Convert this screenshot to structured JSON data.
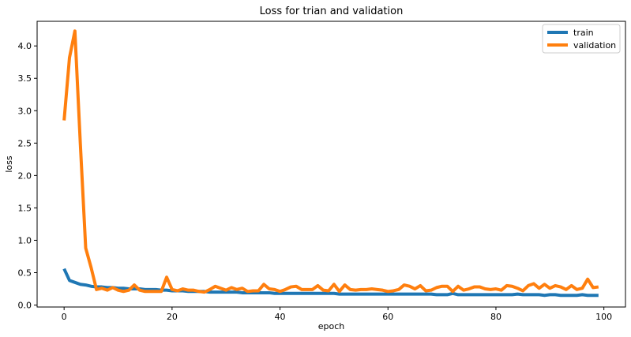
{
  "chart_data": {
    "type": "line",
    "title": "Loss for trian and validation",
    "xlabel": "epoch",
    "ylabel": "loss",
    "xlim": [
      -5,
      104
    ],
    "ylim": [
      -0.03,
      4.38
    ],
    "xticks": [
      0,
      20,
      40,
      60,
      80,
      100
    ],
    "yticks": [
      0.0,
      0.5,
      1.0,
      1.5,
      2.0,
      2.5,
      3.0,
      3.5,
      4.0
    ],
    "grid": false,
    "legend_position": "top-right",
    "series": [
      {
        "name": "train",
        "color": "#1f77b4",
        "x": [
          0,
          1,
          2,
          3,
          4,
          5,
          6,
          7,
          8,
          9,
          10,
          11,
          12,
          13,
          14,
          15,
          16,
          17,
          18,
          19,
          20,
          21,
          22,
          23,
          24,
          25,
          26,
          27,
          28,
          29,
          30,
          31,
          32,
          33,
          34,
          35,
          36,
          37,
          38,
          39,
          40,
          41,
          42,
          43,
          44,
          45,
          46,
          47,
          48,
          49,
          50,
          51,
          52,
          53,
          54,
          55,
          56,
          57,
          58,
          59,
          60,
          61,
          62,
          63,
          64,
          65,
          66,
          67,
          68,
          69,
          70,
          71,
          72,
          73,
          74,
          75,
          76,
          77,
          78,
          79,
          80,
          81,
          82,
          83,
          84,
          85,
          86,
          87,
          88,
          89,
          90,
          91,
          92,
          93,
          94,
          95,
          96,
          97,
          98,
          99
        ],
        "values": [
          0.56,
          0.38,
          0.35,
          0.32,
          0.31,
          0.29,
          0.28,
          0.28,
          0.27,
          0.27,
          0.26,
          0.26,
          0.25,
          0.25,
          0.25,
          0.24,
          0.24,
          0.24,
          0.23,
          0.23,
          0.22,
          0.22,
          0.22,
          0.21,
          0.21,
          0.21,
          0.21,
          0.2,
          0.2,
          0.2,
          0.2,
          0.2,
          0.2,
          0.19,
          0.19,
          0.19,
          0.19,
          0.19,
          0.19,
          0.18,
          0.18,
          0.18,
          0.18,
          0.18,
          0.18,
          0.18,
          0.18,
          0.18,
          0.18,
          0.18,
          0.18,
          0.17,
          0.17,
          0.17,
          0.17,
          0.17,
          0.17,
          0.17,
          0.17,
          0.17,
          0.17,
          0.17,
          0.17,
          0.17,
          0.17,
          0.17,
          0.17,
          0.17,
          0.17,
          0.16,
          0.16,
          0.16,
          0.18,
          0.16,
          0.16,
          0.16,
          0.16,
          0.16,
          0.16,
          0.16,
          0.16,
          0.16,
          0.16,
          0.16,
          0.17,
          0.16,
          0.16,
          0.16,
          0.16,
          0.15,
          0.16,
          0.16,
          0.15,
          0.15,
          0.15,
          0.15,
          0.16,
          0.15,
          0.15,
          0.15
        ]
      },
      {
        "name": "validation",
        "color": "#ff7f0e",
        "x": [
          0,
          1,
          2,
          3,
          4,
          5,
          6,
          7,
          8,
          9,
          10,
          11,
          12,
          13,
          14,
          15,
          16,
          17,
          18,
          19,
          20,
          21,
          22,
          23,
          24,
          25,
          26,
          27,
          28,
          29,
          30,
          31,
          32,
          33,
          34,
          35,
          36,
          37,
          38,
          39,
          40,
          41,
          42,
          43,
          44,
          45,
          46,
          47,
          48,
          49,
          50,
          51,
          52,
          53,
          54,
          55,
          56,
          57,
          58,
          59,
          60,
          61,
          62,
          63,
          64,
          65,
          66,
          67,
          68,
          69,
          70,
          71,
          72,
          73,
          74,
          75,
          76,
          77,
          78,
          79,
          80,
          81,
          82,
          83,
          84,
          85,
          86,
          87,
          88,
          89,
          90,
          91,
          92,
          93,
          94,
          95,
          96,
          97,
          98,
          99
        ],
        "values": [
          2.85,
          3.82,
          4.23,
          2.5,
          0.88,
          0.58,
          0.24,
          0.26,
          0.23,
          0.27,
          0.23,
          0.21,
          0.23,
          0.31,
          0.23,
          0.21,
          0.21,
          0.21,
          0.21,
          0.43,
          0.24,
          0.22,
          0.25,
          0.23,
          0.23,
          0.21,
          0.2,
          0.24,
          0.29,
          0.26,
          0.23,
          0.27,
          0.24,
          0.26,
          0.21,
          0.22,
          0.22,
          0.32,
          0.25,
          0.24,
          0.21,
          0.24,
          0.28,
          0.29,
          0.24,
          0.24,
          0.24,
          0.3,
          0.23,
          0.22,
          0.32,
          0.21,
          0.31,
          0.24,
          0.23,
          0.24,
          0.24,
          0.25,
          0.24,
          0.23,
          0.21,
          0.22,
          0.24,
          0.31,
          0.29,
          0.25,
          0.3,
          0.22,
          0.23,
          0.27,
          0.29,
          0.29,
          0.21,
          0.29,
          0.23,
          0.25,
          0.28,
          0.28,
          0.25,
          0.24,
          0.25,
          0.23,
          0.3,
          0.29,
          0.26,
          0.22,
          0.3,
          0.33,
          0.26,
          0.32,
          0.26,
          0.3,
          0.28,
          0.24,
          0.3,
          0.24,
          0.26,
          0.4,
          0.27,
          0.28
        ]
      }
    ]
  }
}
